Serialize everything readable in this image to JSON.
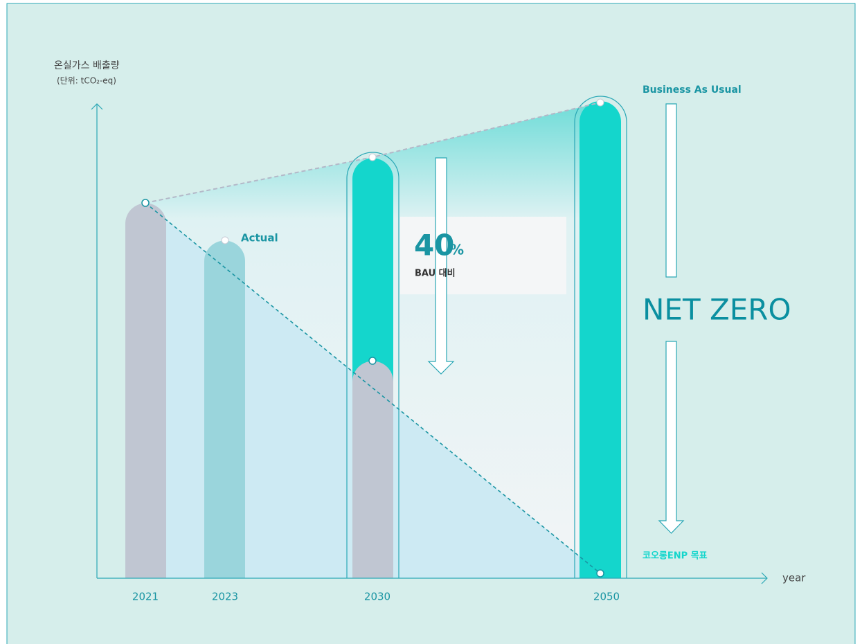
{
  "axis": {
    "y_label": "온실가스 배출량",
    "y_unit": "(단위: tCO₂-eq)",
    "x_label": "year"
  },
  "years": [
    "2021",
    "2023",
    "2030",
    "2050"
  ],
  "labels": {
    "actual": "Actual",
    "reduction": "40",
    "reduction_unit": "%",
    "reduction_note": "BAU 대비",
    "bau": "Business As Usual",
    "net_zero": "NET ZERO",
    "target": "코오롱ENP 목표"
  }
}
